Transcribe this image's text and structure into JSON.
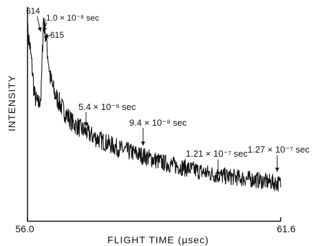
{
  "chart_data": {
    "type": "line",
    "title": "",
    "xlabel": "FLIGHT TIME (μsec)",
    "ylabel": "INTENSITY",
    "xlim": [
      56.0,
      61.6
    ],
    "x_tick_labels": [
      "56.0",
      "61.6"
    ],
    "y_ticks": "none",
    "grid": false,
    "series": [
      {
        "name": "",
        "x": [
          56.0,
          56.05,
          56.1,
          56.15,
          56.2,
          56.25,
          56.28,
          56.3,
          56.32,
          56.35,
          56.4,
          56.5,
          56.6,
          56.8,
          57.0,
          57.2,
          57.5,
          57.8,
          58.0,
          58.3,
          58.6,
          59.0,
          59.4,
          59.8,
          60.2,
          60.6,
          61.0,
          61.3,
          61.6
        ],
        "y": [
          0.91,
          0.84,
          0.74,
          0.61,
          0.57,
          0.56,
          0.59,
          0.6,
          0.74,
          0.97,
          0.9,
          0.69,
          0.61,
          0.53,
          0.47,
          0.44,
          0.4,
          0.37,
          0.35,
          0.33,
          0.31,
          0.28,
          0.26,
          0.24,
          0.22,
          0.21,
          0.2,
          0.19,
          0.18
        ]
      }
    ],
    "annotations": [
      {
        "text": "614",
        "x": 56.22
      },
      {
        "text": "1.0 × 10⁻⁸ sec",
        "x": 56.33
      },
      {
        "text": "615",
        "x": 56.34
      },
      {
        "text": "5.4 × 10⁻⁸ sec",
        "x": 56.84
      },
      {
        "text": "9.4 × 10⁻⁸ sec",
        "x": 57.68
      },
      {
        "text": "1.21 × 10⁻⁷ sec",
        "x": 60.2
      },
      {
        "text": "1.27 × 10⁻⁷ sec",
        "x": 61.46
      }
    ]
  }
}
